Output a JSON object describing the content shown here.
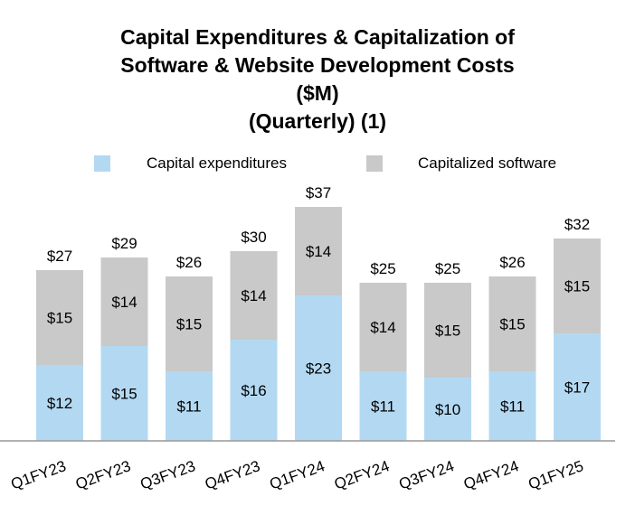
{
  "title_lines": [
    "Capital Expenditures & Capitalization of",
    "Software & Website Development Costs",
    "($M)",
    "(Quarterly) (1)"
  ],
  "colors": {
    "capex": "#b3d9f2",
    "software": "#c8c9c8",
    "axis": "#999999"
  },
  "chart_data": {
    "type": "bar",
    "stacked": true,
    "title": "Capital Expenditures & Capitalization of Software & Website Development Costs ($M) (Quarterly) (1)",
    "categories": [
      "Q1FY23",
      "Q2FY23",
      "Q3FY23",
      "Q4FY23",
      "Q1FY24",
      "Q2FY24",
      "Q3FY24",
      "Q4FY24",
      "Q1FY25"
    ],
    "series": [
      {
        "name": "Capital expenditures",
        "values": [
          12,
          15,
          11,
          16,
          23,
          11,
          10,
          11,
          17
        ],
        "labels": [
          "$12",
          "$15",
          "$11",
          "$16",
          "$23",
          "$11",
          "$10",
          "$11",
          "$17"
        ]
      },
      {
        "name": "Capitalized software",
        "values": [
          15,
          14,
          15,
          14,
          14,
          14,
          15,
          15,
          15
        ],
        "labels": [
          "$15",
          "$14",
          "$15",
          "$14",
          "$14",
          "$14",
          "$15",
          "$15",
          "$15"
        ]
      }
    ],
    "totals": [
      27,
      29,
      26,
      30,
      37,
      25,
      25,
      26,
      32
    ],
    "total_labels": [
      "$27",
      "$29",
      "$26",
      "$30",
      "$37",
      "$25",
      "$25",
      "$26",
      "$32"
    ],
    "ylim": [
      0,
      40
    ],
    "grid": false,
    "legend_position": "top"
  }
}
